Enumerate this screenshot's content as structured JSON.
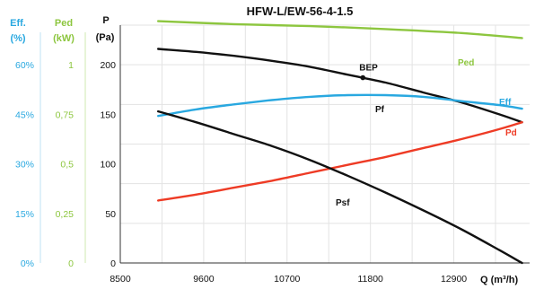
{
  "chart_data": {
    "type": "line",
    "title": "HFW-L/EW-56-4-1.5",
    "xlabel": "Q (m³/h)",
    "xlim": [
      8500,
      13900
    ],
    "x_ticks": [
      "8500",
      "9600",
      "10700",
      "11800",
      "12900"
    ],
    "grid": true,
    "axes": {
      "pressure": {
        "label_line1": "P",
        "label_line2": "(Pa)",
        "ticks": [
          "0",
          "50",
          "100",
          "150",
          "200"
        ],
        "ylim": [
          0,
          240
        ],
        "color": "#111111"
      },
      "power": {
        "label_line1": "Ped",
        "label_line2": "(kW)",
        "ticks": [
          "0",
          "0,25",
          "0,5",
          "0,75",
          "1"
        ],
        "ylim": [
          0,
          1.2
        ],
        "color": "#8dc63f"
      },
      "efficiency": {
        "label_line1": "Eff.",
        "label_line2": "(%)",
        "ticks": [
          "0%",
          "15%",
          "30%",
          "45%",
          "60%"
        ],
        "ylim": [
          0,
          72
        ],
        "color": "#29a8e0"
      }
    },
    "series": [
      {
        "name": "Ped",
        "axis": "power",
        "color": "#8dc63f",
        "x": [
          9000,
          10000,
          11000,
          12000,
          13000,
          13800
        ],
        "y": [
          1.22,
          1.205,
          1.195,
          1.18,
          1.16,
          1.135
        ]
      },
      {
        "name": "Pf",
        "axis": "pressure",
        "color": "#111111",
        "x": [
          9000,
          9500,
          10000,
          10500,
          11000,
          11500,
          12000,
          12500,
          13000,
          13500,
          13800
        ],
        "y": [
          216,
          213,
          209,
          204,
          198,
          190,
          182,
          172,
          162,
          150,
          142
        ]
      },
      {
        "name": "Eff",
        "axis": "efficiency",
        "color": "#29a8e0",
        "x": [
          9000,
          9500,
          10000,
          10500,
          11000,
          11500,
          12000,
          12500,
          13000,
          13500,
          13800
        ],
        "y": [
          44.5,
          46.5,
          48.0,
          49.3,
          50.3,
          50.8,
          50.8,
          50.3,
          49.0,
          47.8,
          46.7
        ]
      },
      {
        "name": "Pd",
        "axis": "pressure",
        "color": "#ee3b25",
        "x": [
          9000,
          9500,
          10000,
          10500,
          11000,
          11500,
          12000,
          12500,
          13000,
          13500,
          13800
        ],
        "y": [
          63,
          69,
          76,
          83,
          91,
          99,
          107,
          116,
          125,
          135,
          142
        ]
      },
      {
        "name": "Psf",
        "axis": "pressure",
        "color": "#111111",
        "x": [
          9000,
          9500,
          10000,
          10500,
          11000,
          11500,
          12000,
          12500,
          13000,
          13500,
          13800
        ],
        "y": [
          153,
          142,
          130,
          118,
          104,
          88,
          71,
          53,
          34,
          13,
          0
        ]
      }
    ],
    "annotations": [
      {
        "text": "BEP",
        "x": 11700,
        "y": 187,
        "axis": "pressure",
        "marker": true
      }
    ]
  }
}
